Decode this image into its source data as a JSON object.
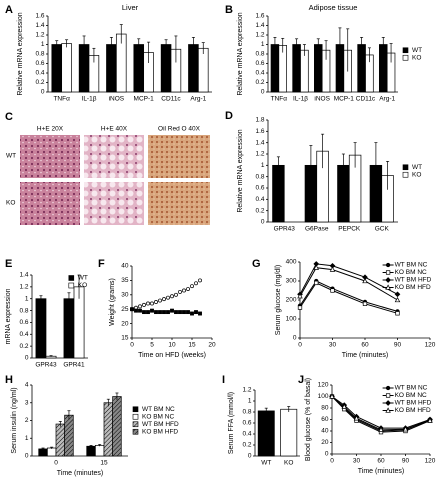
{
  "image_panel": {
    "panel": "C",
    "columns": [
      "H+E 20X",
      "H+E 40X",
      "Oil Red O 40X"
    ],
    "rows": [
      "WT",
      "KO"
    ]
  },
  "chart_data": [
    {
      "panel": "A",
      "type": "bar",
      "title": "Liver",
      "ylabel": "Relative mRNA expression",
      "categories": [
        "TNFα",
        "IL-1β",
        "iNOS",
        "MCP-1",
        "CD11c",
        "Arg-1"
      ],
      "series": [
        {
          "color": "#000000",
          "values": [
            1,
            1,
            1,
            1,
            1,
            1
          ],
          "errors": [
            0.08,
            0.18,
            0.15,
            0.12,
            0.1,
            0.15
          ]
        },
        {
          "color": "#ffffff",
          "values": [
            1.02,
            0.77,
            1.22,
            0.83,
            0.9,
            0.92
          ],
          "errors": [
            0.08,
            0.15,
            0.2,
            0.22,
            0.28,
            0.12
          ]
        }
      ],
      "ylim": [
        0,
        1.6
      ],
      "yticks": [
        0,
        0.2,
        0.4,
        0.6,
        0.8,
        1,
        1.2,
        1.4,
        1.6
      ]
    },
    {
      "panel": "B",
      "type": "bar",
      "title": "Adipose tissue",
      "ylabel": "Relative mRNA expression",
      "categories": [
        "TNFα",
        "IL-1β",
        "iNOS",
        "MCP-1",
        "CD11c",
        "Arg-1"
      ],
      "series": [
        {
          "name": "WT",
          "color": "#000000",
          "values": [
            1,
            1,
            1,
            1,
            1,
            1
          ],
          "errors": [
            0.15,
            0.12,
            0.12,
            0.35,
            0.15,
            0.15
          ]
        },
        {
          "name": "KO",
          "color": "#ffffff",
          "values": [
            0.98,
            0.88,
            0.88,
            0.88,
            0.78,
            0.82
          ],
          "errors": [
            0.15,
            0.12,
            0.2,
            0.45,
            0.15,
            0.2
          ]
        }
      ],
      "ylim": [
        0,
        1.6
      ],
      "yticks": [
        0,
        0.2,
        0.4,
        0.6,
        0.8,
        1,
        1.2,
        1.4,
        1.6
      ],
      "legend": "right"
    },
    {
      "panel": "D",
      "type": "bar",
      "ylabel": "Relative mRNA expression",
      "categories": [
        "GPR43",
        "G6Pase",
        "PEPCK",
        "GCK"
      ],
      "series": [
        {
          "name": "WT",
          "color": "#000000",
          "values": [
            1,
            1,
            1,
            1
          ],
          "errors": [
            0.15,
            0.35,
            0.2,
            0.4
          ]
        },
        {
          "name": "KO",
          "color": "#ffffff",
          "values": [
            null,
            1.25,
            1.18,
            0.82
          ],
          "errors": [
            null,
            0.3,
            0.22,
            0.25
          ]
        }
      ],
      "ylim": [
        0,
        1.8
      ],
      "yticks": [
        0,
        0.2,
        0.4,
        0.6,
        0.8,
        1,
        1.2,
        1.4,
        1.6,
        1.8
      ],
      "legend": "right"
    },
    {
      "panel": "E",
      "type": "bar",
      "ylabel": "mRNA expression",
      "categories": [
        "GPR43",
        "GPR41"
      ],
      "series": [
        {
          "name": "WT",
          "color": "#000000",
          "values": [
            1,
            1
          ],
          "errors": [
            0.05,
            0.1
          ]
        },
        {
          "name": "KO",
          "color": "#ffffff",
          "values": [
            0.03,
            1.2
          ],
          "errors": [
            0.01,
            0.2
          ]
        }
      ],
      "ylim": [
        0,
        1.4
      ],
      "yticks": [
        0,
        0.2,
        0.4,
        0.6,
        0.8,
        1,
        1.2,
        1.4
      ],
      "legend": "upper right"
    },
    {
      "panel": "F",
      "type": "scatter",
      "xlabel": "Time on HFD (weeks)",
      "ylabel": "Weight (grams)",
      "x": [
        0,
        1,
        2,
        3,
        4,
        5,
        6,
        7,
        8,
        9,
        10,
        11,
        12,
        13,
        14,
        15,
        16,
        17
      ],
      "series": [
        {
          "color": "#000000",
          "marker": "circle",
          "fill": "#ffffff",
          "values": [
            25,
            25.5,
            26,
            26.5,
            27,
            27,
            27.5,
            28,
            28.5,
            29,
            29.5,
            30,
            31,
            31.5,
            32,
            33,
            34,
            35
          ]
        },
        {
          "color": "#000000",
          "marker": "square",
          "fill": "#000000",
          "values": [
            25,
            24.5,
            24.5,
            24,
            24,
            24.5,
            24,
            24,
            24,
            24,
            24.5,
            24,
            24,
            24,
            24,
            23.5,
            24,
            23.5
          ]
        }
      ],
      "xlim": [
        0,
        20
      ],
      "xticks": [
        0,
        5,
        10,
        15,
        20
      ],
      "ylim": [
        15,
        40
      ],
      "yticks": [
        15,
        20,
        25,
        30,
        35,
        40
      ]
    },
    {
      "panel": "G",
      "type": "line",
      "xlabel": "Time (minutes)",
      "ylabel": "Serum glucose (mg/dl)",
      "x": [
        0,
        15,
        30,
        60,
        90
      ],
      "series": [
        {
          "name": "WT BM NC",
          "color": "#000000",
          "marker": "circle",
          "fill": "#000000",
          "values": [
            170,
            300,
            260,
            190,
            140
          ]
        },
        {
          "name": "KO BM NC",
          "color": "#000000",
          "marker": "square",
          "fill": "#ffffff",
          "values": [
            160,
            290,
            250,
            180,
            130
          ]
        },
        {
          "name": "WT BM HFD",
          "color": "#000000",
          "marker": "diamond",
          "fill": "#000000",
          "values": [
            230,
            390,
            380,
            320,
            230
          ]
        },
        {
          "name": "KO BM HFD",
          "color": "#000000",
          "marker": "triangle",
          "fill": "#ffffff",
          "values": [
            220,
            370,
            360,
            300,
            200
          ]
        }
      ],
      "xlim": [
        0,
        120
      ],
      "xticks": [
        0,
        30,
        60,
        90,
        120
      ],
      "ylim": [
        0,
        400
      ],
      "yticks": [
        0,
        100,
        200,
        300,
        400
      ],
      "legend": "upper right"
    },
    {
      "panel": "H",
      "type": "bar",
      "xlabel": "Time (minutes)",
      "ylabel": "Serum insulin (ng/ml)",
      "categories": [
        "0",
        "15"
      ],
      "series": [
        {
          "name": "WT BM NC",
          "color": "#000000",
          "values": [
            0.4,
            0.55
          ],
          "errors": [
            0.05,
            0.05
          ]
        },
        {
          "name": "KO BM NC",
          "color": "#ffffff",
          "values": [
            0.45,
            0.6
          ],
          "errors": [
            0.05,
            0.05
          ]
        },
        {
          "name": "WT BM HFD",
          "color": "#bbbbbb",
          "hatch": true,
          "values": [
            1.8,
            3.0
          ],
          "errors": [
            0.15,
            0.2
          ]
        },
        {
          "name": "KO BM HFD",
          "color": "#888888",
          "hatch": true,
          "values": [
            2.3,
            3.35
          ],
          "errors": [
            0.25,
            0.2
          ]
        }
      ],
      "ylim": [
        0,
        4
      ],
      "yticks": [
        0,
        1,
        2,
        3,
        4
      ],
      "legend": "right"
    },
    {
      "panel": "I",
      "type": "bar",
      "ylabel": "Serum FFA (mmol/l)",
      "categories": [
        "WT",
        "KO"
      ],
      "values": [
        0.82,
        0.85
      ],
      "errors": [
        0.05,
        0.05
      ],
      "colors": [
        "#000000",
        "#ffffff"
      ],
      "ylim": [
        0,
        1.2
      ],
      "yticks": [
        0,
        0.2,
        0.4,
        0.6,
        0.8,
        1,
        1.2
      ]
    },
    {
      "panel": "J",
      "type": "line",
      "xlabel": "Time (minutes)",
      "ylabel": "Blood glucose (% of basal)",
      "x": [
        0,
        15,
        30,
        60,
        90,
        120
      ],
      "series": [
        {
          "name": "WT BM NC",
          "color": "#000000",
          "marker": "circle",
          "fill": "#000000",
          "values": [
            100,
            80,
            60,
            40,
            42,
            60
          ]
        },
        {
          "name": "KO BM NC",
          "color": "#000000",
          "marker": "square",
          "fill": "#ffffff",
          "values": [
            100,
            78,
            58,
            38,
            40,
            58
          ]
        },
        {
          "name": "WT BM HFD",
          "color": "#000000",
          "marker": "diamond",
          "fill": "#000000",
          "values": [
            100,
            85,
            65,
            45,
            45,
            60
          ]
        },
        {
          "name": "KO BM HFD",
          "color": "#000000",
          "marker": "triangle",
          "fill": "#ffffff",
          "values": [
            100,
            82,
            62,
            42,
            43,
            58
          ]
        }
      ],
      "xlim": [
        0,
        120
      ],
      "xticks": [
        0,
        30,
        60,
        90,
        120
      ],
      "ylim": [
        0,
        120
      ],
      "yticks": [
        0,
        20,
        40,
        60,
        80,
        100,
        120
      ],
      "legend": "upper right"
    }
  ]
}
